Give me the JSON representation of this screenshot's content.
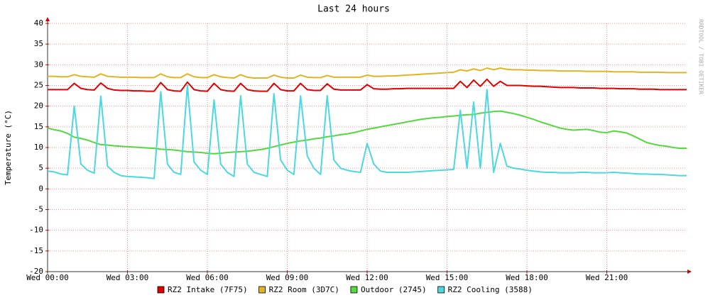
{
  "chart_data": {
    "type": "line",
    "title": "Last 24 hours",
    "y_label": "Temperature (°C)",
    "watermark": "RRDTOOL / TOBI OETIKER",
    "xlim": [
      0,
      24
    ],
    "ylim": [
      -20,
      40
    ],
    "xticks": [
      {
        "value": 0,
        "label": "Wed 00:00"
      },
      {
        "value": 3,
        "label": "Wed 03:00"
      },
      {
        "value": 6,
        "label": "Wed 06:00"
      },
      {
        "value": 9,
        "label": "Wed 09:00"
      },
      {
        "value": 12,
        "label": "Wed 12:00"
      },
      {
        "value": 15,
        "label": "Wed 15:00"
      },
      {
        "value": 18,
        "label": "Wed 18:00"
      },
      {
        "value": 21,
        "label": "Wed 21:00"
      }
    ],
    "yticks": [
      -20,
      -15,
      -10,
      -5,
      0,
      5,
      10,
      15,
      20,
      25,
      30,
      35,
      40
    ],
    "grid": true,
    "x": [
      0,
      0.25,
      0.5,
      0.75,
      1,
      1.25,
      1.5,
      1.75,
      2,
      2.25,
      2.5,
      2.75,
      3,
      3.25,
      3.5,
      3.75,
      4,
      4.25,
      4.5,
      4.75,
      5,
      5.25,
      5.5,
      5.75,
      6,
      6.25,
      6.5,
      6.75,
      7,
      7.25,
      7.5,
      7.75,
      8,
      8.25,
      8.5,
      8.75,
      9,
      9.25,
      9.5,
      9.75,
      10,
      10.25,
      10.5,
      10.75,
      11,
      11.25,
      11.5,
      11.75,
      12,
      12.25,
      12.5,
      12.75,
      13,
      13.25,
      13.5,
      13.75,
      14,
      14.25,
      14.5,
      14.75,
      15,
      15.25,
      15.5,
      15.75,
      16,
      16.25,
      16.5,
      16.75,
      17,
      17.25,
      17.5,
      17.75,
      18,
      18.25,
      18.5,
      18.75,
      19,
      19.25,
      19.5,
      19.75,
      20,
      20.25,
      20.5,
      20.75,
      21,
      21.25,
      21.5,
      21.75,
      22,
      22.25,
      22.5,
      22.75,
      23,
      23.25,
      23.5,
      23.75,
      24
    ],
    "series": [
      {
        "name": "RZ2 Intake (7F75)",
        "color": "#e00000",
        "values": [
          24,
          24,
          24,
          24,
          25.5,
          24.3,
          24,
          23.9,
          25.6,
          24.3,
          23.9,
          23.8,
          23.8,
          23.7,
          23.7,
          23.6,
          23.6,
          25.7,
          24,
          23.7,
          23.6,
          25.8,
          24,
          23.7,
          23.6,
          25.5,
          24,
          23.7,
          23.6,
          25.5,
          24,
          23.7,
          23.6,
          23.6,
          25.5,
          24,
          23.7,
          23.7,
          25.5,
          24,
          23.8,
          23.8,
          25.4,
          24.1,
          23.9,
          23.9,
          23.9,
          23.9,
          25.2,
          24.2,
          24.1,
          24.1,
          24.2,
          24.2,
          24.3,
          24.3,
          24.3,
          24.3,
          24.3,
          24.3,
          24.3,
          24.3,
          26,
          24.5,
          26.3,
          24.8,
          26.5,
          24.8,
          26,
          25,
          25,
          25,
          24.9,
          24.8,
          24.8,
          24.7,
          24.6,
          24.5,
          24.5,
          24.5,
          24.4,
          24.4,
          24.4,
          24.3,
          24.3,
          24.3,
          24.2,
          24.2,
          24.2,
          24.1,
          24.1,
          24.1,
          24,
          24,
          24,
          24,
          24
        ]
      },
      {
        "name": "RZ2 Room (3D7C)",
        "color": "#e2b424",
        "values": [
          27.2,
          27.2,
          27.1,
          27.1,
          27.6,
          27.2,
          27.1,
          27,
          27.8,
          27.2,
          27.1,
          27,
          27,
          27,
          26.9,
          26.9,
          26.9,
          27.8,
          27.1,
          26.9,
          26.9,
          27.8,
          27.1,
          26.9,
          26.9,
          27.6,
          27.1,
          26.9,
          26.8,
          27.6,
          27,
          26.8,
          26.8,
          26.8,
          27.5,
          27,
          26.8,
          26.8,
          27.5,
          27,
          26.9,
          26.9,
          27.4,
          27,
          27,
          27,
          27,
          27,
          27.5,
          27.2,
          27.2,
          27.3,
          27.3,
          27.4,
          27.5,
          27.6,
          27.7,
          27.8,
          27.9,
          28,
          28.1,
          28.2,
          28.8,
          28.5,
          29,
          28.6,
          29.2,
          28.8,
          29.2,
          28.9,
          28.8,
          28.8,
          28.7,
          28.7,
          28.6,
          28.6,
          28.6,
          28.5,
          28.5,
          28.5,
          28.5,
          28.4,
          28.4,
          28.4,
          28.4,
          28.3,
          28.3,
          28.3,
          28.3,
          28.2,
          28.2,
          28.2,
          28.2,
          28.1,
          28.1,
          28.1,
          28.1
        ]
      },
      {
        "name": "Outdoor (2745)",
        "color": "#54d83f",
        "values": [
          14.7,
          14.3,
          14,
          13.4,
          12.5,
          12.2,
          11.8,
          11.2,
          10.7,
          10.6,
          10.4,
          10.3,
          10.2,
          10.1,
          10,
          9.9,
          9.8,
          9.6,
          9.5,
          9.4,
          9.2,
          9,
          8.9,
          8.8,
          8.6,
          8.5,
          8.6,
          8.8,
          8.9,
          9,
          9.1,
          9.3,
          9.5,
          9.8,
          10.2,
          10.6,
          11,
          11.3,
          11.6,
          11.8,
          12.1,
          12.3,
          12.6,
          12.8,
          13.1,
          13.3,
          13.6,
          14,
          14.4,
          14.7,
          15,
          15.3,
          15.6,
          15.9,
          16.2,
          16.5,
          16.8,
          17,
          17.2,
          17.3,
          17.5,
          17.6,
          17.8,
          17.9,
          18,
          18.3,
          18.5,
          18.7,
          18.8,
          18.5,
          18.2,
          17.8,
          17.3,
          16.8,
          16.2,
          15.7,
          15.2,
          14.7,
          14.4,
          14.2,
          14.3,
          14.4,
          14.1,
          13.7,
          13.6,
          14,
          13.8,
          13.5,
          12.8,
          12,
          11.2,
          10.8,
          10.5,
          10.3,
          10,
          9.8,
          9.8
        ]
      },
      {
        "name": "RZ2 Cooling (3588)",
        "color": "#4cd8e0",
        "values": [
          4.3,
          4.1,
          3.6,
          3.4,
          20,
          6,
          4.5,
          3.8,
          22.4,
          5.5,
          4,
          3.2,
          3,
          2.9,
          2.8,
          2.7,
          2.5,
          23.5,
          6,
          4,
          3.5,
          25,
          6.5,
          4.5,
          3.5,
          21.5,
          6,
          4,
          3,
          22.5,
          6,
          4,
          3.5,
          3,
          23,
          7,
          4.5,
          3.5,
          22.5,
          8,
          5,
          3.5,
          22.5,
          7,
          5,
          4.5,
          4.2,
          4,
          11,
          6,
          4.3,
          4,
          4,
          4,
          4,
          4.1,
          4.2,
          4.3,
          4.4,
          4.5,
          4.6,
          4.7,
          19,
          5,
          21,
          5,
          24,
          4,
          11,
          5.5,
          5,
          4.8,
          4.5,
          4.3,
          4.1,
          4,
          4,
          3.9,
          3.9,
          3.9,
          4,
          4,
          3.9,
          3.9,
          3.9,
          4,
          3.9,
          3.8,
          3.7,
          3.6,
          3.6,
          3.5,
          3.5,
          3.4,
          3.3,
          3.2,
          3.2
        ]
      }
    ]
  }
}
